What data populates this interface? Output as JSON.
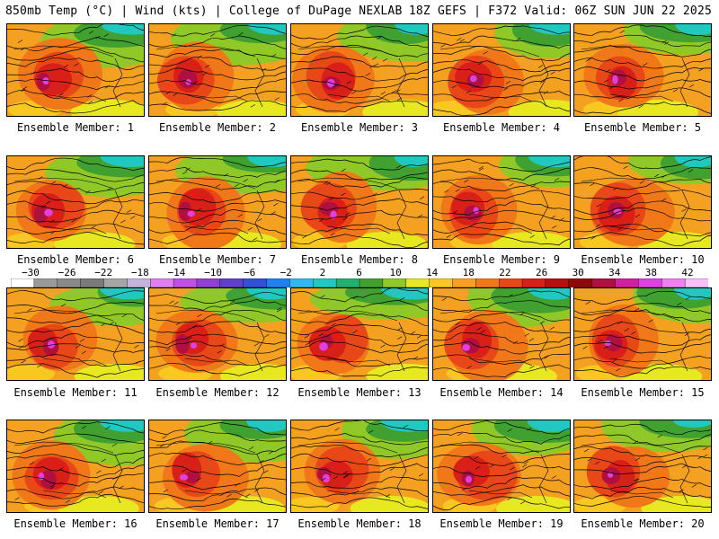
{
  "header": {
    "left": "850mb Temp (°C) | Wind (kts) | College of DuPage NEXLAB",
    "right": "18Z GEFS | F372 Valid: 06Z SUN JUN 22 2025"
  },
  "members": [
    "Ensemble Member: 1",
    "Ensemble Member: 2",
    "Ensemble Member: 3",
    "Ensemble Member: 4",
    "Ensemble Member: 5",
    "Ensemble Member: 6",
    "Ensemble Member: 7",
    "Ensemble Member: 8",
    "Ensemble Member: 9",
    "Ensemble Member: 10",
    "Ensemble Member: 11",
    "Ensemble Member: 12",
    "Ensemble Member: 13",
    "Ensemble Member: 14",
    "Ensemble Member: 15",
    "Ensemble Member: 16",
    "Ensemble Member: 17",
    "Ensemble Member: 18",
    "Ensemble Member: 19",
    "Ensemble Member: 20"
  ],
  "colorbar": {
    "ticks": [
      "−30",
      "−26",
      "−22",
      "−18",
      "−14",
      "−10",
      "−6",
      "−2",
      "2",
      "6",
      "10",
      "14",
      "18",
      "22",
      "26",
      "30",
      "34",
      "38",
      "42"
    ],
    "colors": [
      "#ffffff",
      "#9a9a9a",
      "#8a8a8a",
      "#7a7a7a",
      "#a6a6a6",
      "#c4b4dc",
      "#e080f0",
      "#c050e0",
      "#9040d0",
      "#6040c8",
      "#3050d8",
      "#2080f0",
      "#30b8f0",
      "#20c8c0",
      "#20b070",
      "#40a030",
      "#90c828",
      "#e8e820",
      "#f8c820",
      "#f8a020",
      "#f07818",
      "#e84818",
      "#d82018",
      "#b81010",
      "#900808",
      "#b01040",
      "#d020a0",
      "#e040e0",
      "#f080f0",
      "#f8c0f8"
    ]
  }
}
